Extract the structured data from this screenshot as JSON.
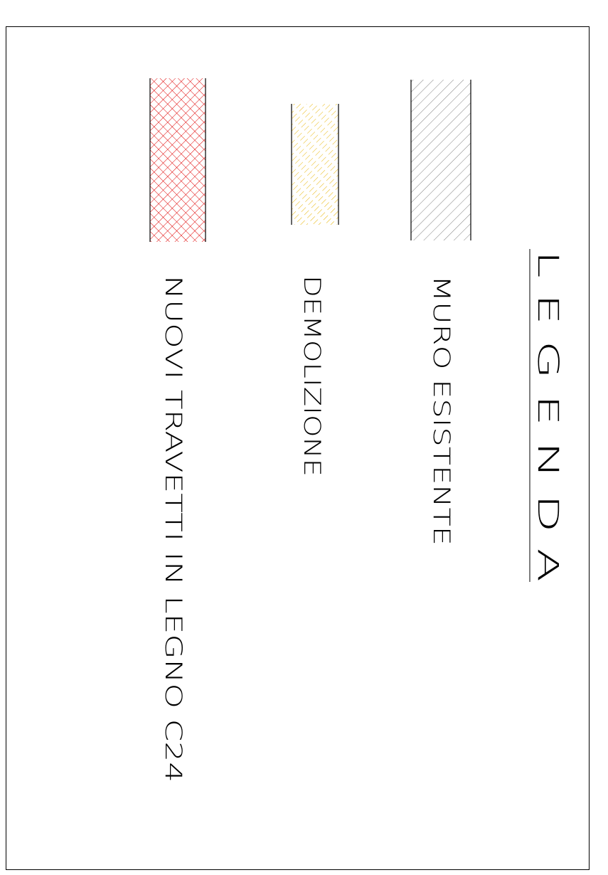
{
  "legend": {
    "title": "L E G E N D A",
    "items": [
      {
        "label": "MURO ESISTENTE",
        "hatch": "diagonal",
        "color": "#808080"
      },
      {
        "label": "DEMOLIZIONE",
        "hatch": "dashed-diagonal",
        "color": "#e8b400"
      },
      {
        "label": "NUOVI TRAVETTI IN LEGNO C24",
        "hatch": "crosshatch",
        "color": "#e00000"
      }
    ]
  }
}
